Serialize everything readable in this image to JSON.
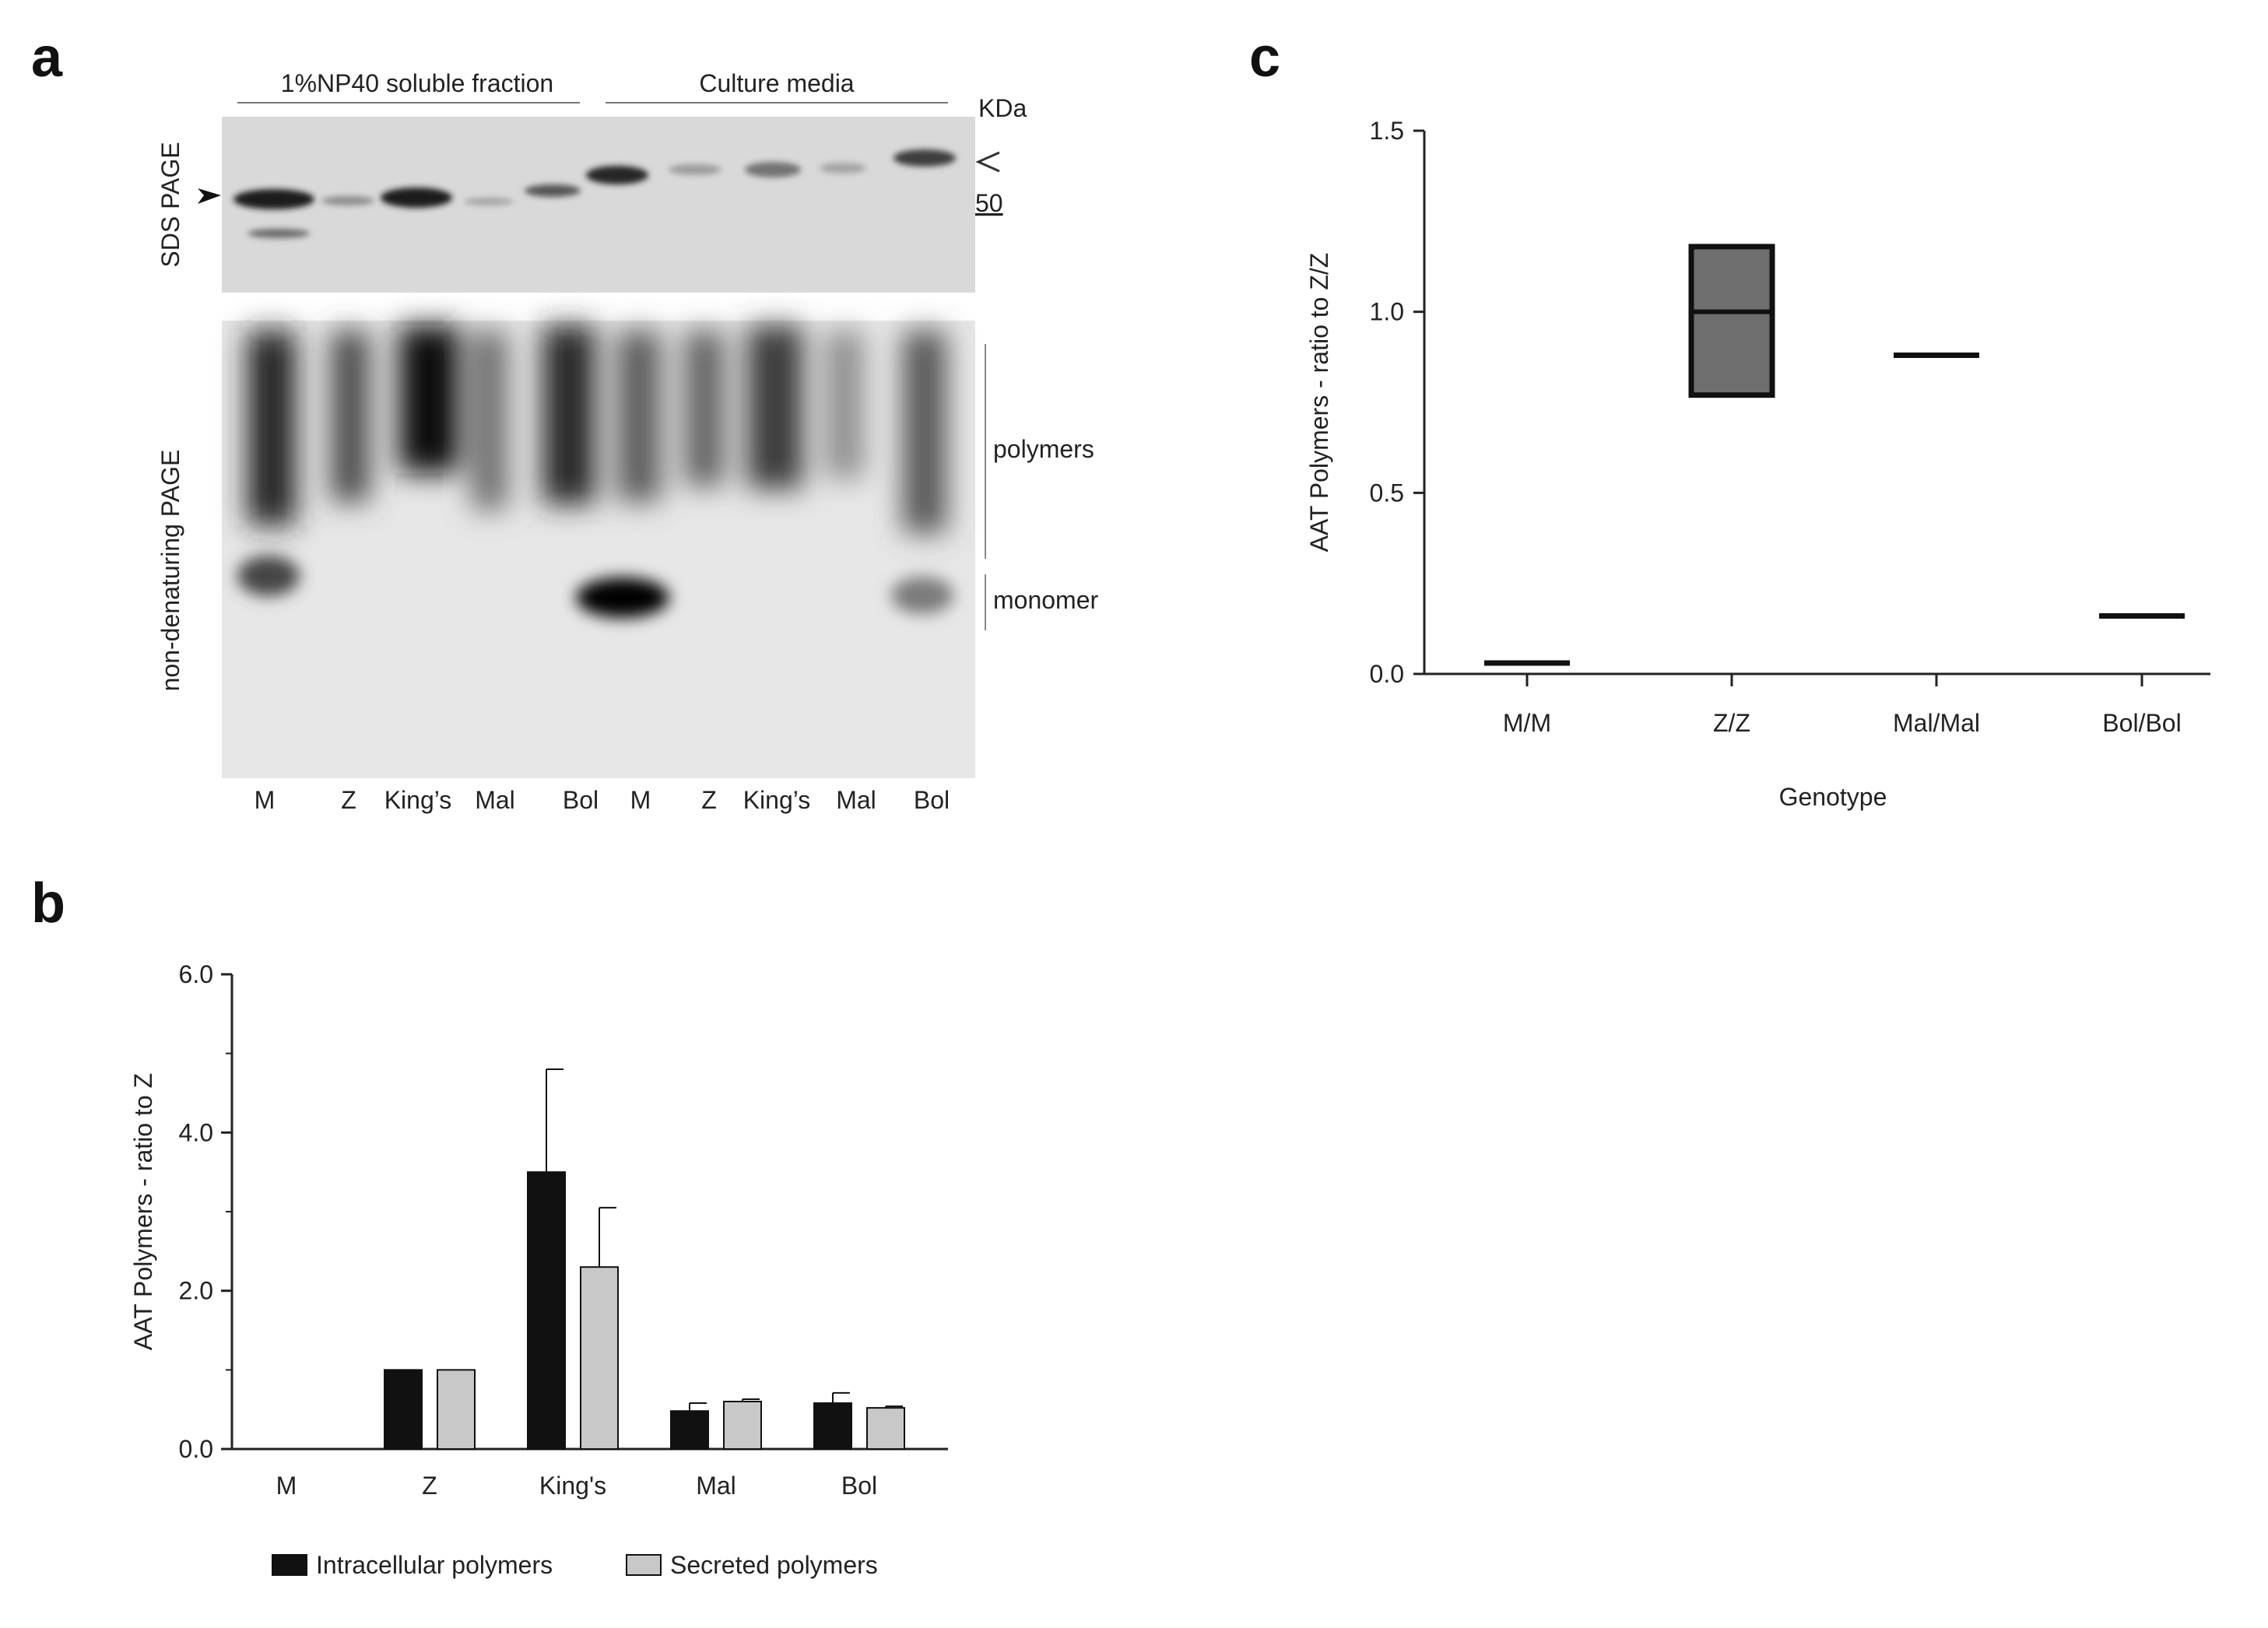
{
  "panels": {
    "a": {
      "letter": "a",
      "header_left": "1%NP40 soluble fraction",
      "header_right": "Culture media",
      "kda_label": "KDa",
      "kda_marker": "50",
      "sds_label": "SDS PAGE",
      "native_label": "non-denaturing PAGE",
      "polymers_label": "polymers",
      "monomer_label": "monomer",
      "lanes": [
        "M",
        "Z",
        "King’s",
        "Mal",
        "Bol",
        "M",
        "Z",
        "King’s",
        "Mal",
        "Bol"
      ]
    },
    "b": {
      "letter": "b"
    },
    "c": {
      "letter": "c"
    }
  },
  "chart_data": [
    {
      "panel": "b",
      "type": "bar",
      "categories": [
        "M",
        "Z",
        "King's",
        "Mal",
        "Bol"
      ],
      "series": [
        {
          "name": "Intracellular polymers",
          "color": "#111111",
          "values": [
            0,
            1.0,
            3.5,
            0.48,
            0.58
          ],
          "errors": [
            0,
            0,
            1.3,
            0.1,
            0.13
          ]
        },
        {
          "name": "Secreted polymers",
          "color": "#c8c8c8",
          "values": [
            0,
            1.0,
            2.3,
            0.6,
            0.52
          ],
          "errors": [
            0,
            0,
            0.75,
            0.03,
            0.02
          ]
        }
      ],
      "ylabel": "AAT Polymers - ratio to Z",
      "xlabel": "",
      "ylim": [
        0,
        6
      ],
      "yticks": [
        "0.0",
        "2.0",
        "4.0",
        "6.0"
      ],
      "legend_position": "bottom"
    },
    {
      "panel": "c",
      "type": "box",
      "categories": [
        "M/M",
        "Z/Z",
        "Mal/Mal",
        "Bol/Bol"
      ],
      "boxes": [
        {
          "low": 0.03,
          "median": 0.03,
          "high": 0.03
        },
        {
          "low": 0.77,
          "median": 1.0,
          "high": 1.18,
          "fill": "#6e6e6e"
        },
        {
          "low": 0.88,
          "median": 0.88,
          "high": 0.88
        },
        {
          "low": 0.16,
          "median": 0.16,
          "high": 0.16
        }
      ],
      "ylabel": "AAT Polymers - ratio to Z/Z",
      "xlabel": "Genotype",
      "ylim": [
        0,
        1.5
      ],
      "yticks": [
        "0.0",
        "0.5",
        "1.0",
        "1.5"
      ]
    }
  ]
}
